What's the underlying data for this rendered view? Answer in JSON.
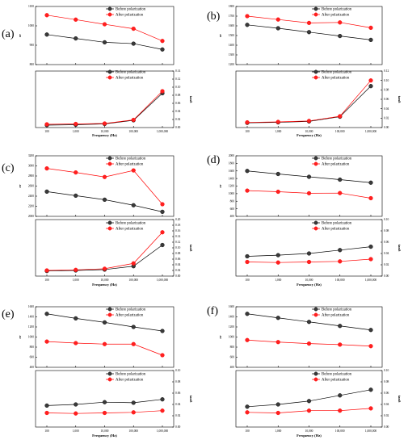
{
  "colors": {
    "before": "#000000",
    "after": "#ff0000",
    "before_fill": "#3a3a3a",
    "after_fill": "#ff2020"
  },
  "chart_data": [
    {
      "type": "line",
      "panel_label": "(a)",
      "categories": [
        "100",
        "1,000",
        "10,000",
        "100,000",
        "1,000,000"
      ],
      "xlabel": "Frequency (Hz)",
      "top": {
        "ylabel": "εr",
        "ylim": [
          800,
          1100
        ],
        "yticks": [
          "800",
          "900",
          "1000",
          "1100"
        ],
        "series": [
          {
            "name": "Before polarization",
            "values": [
              955,
              935,
              915,
              908,
              878
            ]
          },
          {
            "name": "After polarization",
            "values": [
              1055,
              1032,
              1008,
              985,
              922
            ]
          }
        ]
      },
      "bottom": {
        "ylabel": "tanδ",
        "ylim": [
          0,
          0.14
        ],
        "yticks": [
          "0.00",
          "0.02",
          "0.04",
          "0.06",
          "0.08",
          "0.10",
          "0.12",
          "0.14"
        ],
        "series": [
          {
            "name": "Before polarization",
            "values": [
              0.006,
              0.007,
              0.009,
              0.018,
              0.085
            ]
          },
          {
            "name": "After polarization",
            "values": [
              0.008,
              0.009,
              0.01,
              0.019,
              0.09
            ]
          }
        ]
      }
    },
    {
      "type": "line",
      "panel_label": "(b)",
      "categories": [
        "100",
        "1,000",
        "10,000",
        "100,000",
        "1,000,000"
      ],
      "xlabel": "Frequency (Hz)",
      "top": {
        "ylabel": "εr",
        "ylim": [
          1200,
          1800
        ],
        "yticks": [
          "1200",
          "1300",
          "1400",
          "1500",
          "1600",
          "1700",
          "1800"
        ],
        "series": [
          {
            "name": "Before polarization",
            "values": [
              1610,
              1575,
              1535,
              1495,
              1455
            ]
          },
          {
            "name": "After polarization",
            "values": [
              1700,
              1665,
              1630,
              1635,
              1580
            ]
          }
        ]
      },
      "bottom": {
        "ylabel": "tanδ",
        "ylim": [
          0,
          0.12
        ],
        "yticks": [
          "0.00",
          "0.02",
          "0.04",
          "0.06",
          "0.08",
          "0.10",
          "0.12"
        ],
        "series": [
          {
            "name": "Before polarization",
            "values": [
              0.01,
              0.011,
              0.013,
              0.023,
              0.088
            ]
          },
          {
            "name": "After polarization",
            "values": [
              0.011,
              0.012,
              0.014,
              0.024,
              0.1
            ]
          }
        ]
      }
    },
    {
      "type": "line",
      "panel_label": "(c)",
      "categories": [
        "100",
        "1,000",
        "10,000",
        "100,000",
        "1,000,000"
      ],
      "xlabel": "Frequency (Hz)",
      "top": {
        "ylabel": "εr",
        "ylim": [
          2000,
          3200
        ],
        "yticks": [
          "2000",
          "2200",
          "2400",
          "2600",
          "2800",
          "3000",
          "3200"
        ],
        "series": [
          {
            "name": "Before polarization",
            "values": [
              2490,
              2410,
              2330,
              2220,
              2090
            ]
          },
          {
            "name": "After polarization",
            "values": [
              2950,
              2870,
              2780,
              2910,
              2240
            ]
          }
        ]
      },
      "bottom": {
        "ylabel": "tanδ",
        "ylim": [
          0,
          0.2
        ],
        "yticks": [
          "0.00",
          "0.02",
          "0.04",
          "0.06",
          "0.08",
          "0.10",
          "0.12",
          "0.14",
          "0.16",
          "0.18",
          "0.20"
        ],
        "series": [
          {
            "name": "Before polarization",
            "values": [
              0.018,
              0.02,
              0.023,
              0.035,
              0.11
            ]
          },
          {
            "name": "After polarization",
            "values": [
              0.02,
              0.022,
              0.026,
              0.045,
              0.155
            ]
          }
        ]
      }
    },
    {
      "type": "line",
      "panel_label": "(d)",
      "categories": [
        "100",
        "1,000",
        "10,000",
        "100,000",
        "1,000,000"
      ],
      "xlabel": "Frequency (Hz)",
      "top": {
        "ylabel": "εr",
        "ylim": [
          400,
          2000
        ],
        "yticks": [
          "400",
          "600",
          "800",
          "1000",
          "1200",
          "1400",
          "1600",
          "1800",
          "2000"
        ],
        "series": [
          {
            "name": "Before polarization",
            "values": [
              1600,
              1520,
              1445,
              1370,
              1290
            ]
          },
          {
            "name": "After polarization",
            "values": [
              1080,
              1050,
              1010,
              1015,
              880
            ]
          }
        ]
      },
      "bottom": {
        "ylabel": "tanδ",
        "ylim": [
          0,
          0.1
        ],
        "yticks": [
          "0.00",
          "0.02",
          "0.04",
          "0.06",
          "0.08",
          "0.10"
        ],
        "series": [
          {
            "name": "Before polarization",
            "values": [
              0.035,
              0.037,
              0.04,
              0.046,
              0.052
            ]
          },
          {
            "name": "After polarization",
            "values": [
              0.025,
              0.024,
              0.025,
              0.026,
              0.03
            ]
          }
        ]
      }
    },
    {
      "type": "line",
      "panel_label": "(e)",
      "categories": [
        "100",
        "1,000",
        "10,000",
        "100,000",
        "1,000,000"
      ],
      "xlabel": "Frequency (Hz)",
      "top": {
        "ylabel": "εr",
        "ylim": [
          400,
          1600
        ],
        "yticks": [
          "400",
          "600",
          "800",
          "1000",
          "1200",
          "1400",
          "1600"
        ],
        "series": [
          {
            "name": "Before polarization",
            "values": [
              1460,
              1370,
              1290,
              1200,
              1120
            ]
          },
          {
            "name": "After polarization",
            "values": [
              910,
              880,
              860,
              860,
              640
            ]
          }
        ]
      },
      "bottom": {
        "ylabel": "tanδ",
        "ylim": [
          0,
          0.1
        ],
        "yticks": [
          "0.00",
          "0.02",
          "0.04",
          "0.06",
          "0.08",
          "0.10"
        ],
        "series": [
          {
            "name": "Before polarization",
            "values": [
              0.038,
              0.04,
              0.044,
              0.043,
              0.049
            ]
          },
          {
            "name": "After polarization",
            "values": [
              0.025,
              0.024,
              0.025,
              0.026,
              0.029
            ]
          }
        ]
      }
    },
    {
      "type": "line",
      "panel_label": "(f)",
      "categories": [
        "100",
        "1,000",
        "10,000",
        "100,000",
        "1,000,000"
      ],
      "xlabel": "Frequency (Hz)",
      "top": {
        "ylabel": "εr",
        "ylim": [
          400,
          1600
        ],
        "yticks": [
          "400",
          "600",
          "800",
          "1000",
          "1200",
          "1400",
          "1600"
        ],
        "series": [
          {
            "name": "Before polarization",
            "values": [
              1460,
              1380,
              1300,
              1220,
              1140
            ]
          },
          {
            "name": "After polarization",
            "values": [
              940,
              900,
              870,
              850,
              820
            ]
          }
        ]
      },
      "bottom": {
        "ylabel": "tanδ",
        "ylim": [
          0,
          0.1
        ],
        "yticks": [
          "0.00",
          "0.02",
          "0.04",
          "0.06",
          "0.08",
          "0.10"
        ],
        "series": [
          {
            "name": "Before polarization",
            "values": [
              0.036,
              0.04,
              0.046,
              0.056,
              0.066
            ]
          },
          {
            "name": "After polarization",
            "values": [
              0.026,
              0.025,
              0.029,
              0.029,
              0.033
            ]
          }
        ]
      }
    }
  ]
}
